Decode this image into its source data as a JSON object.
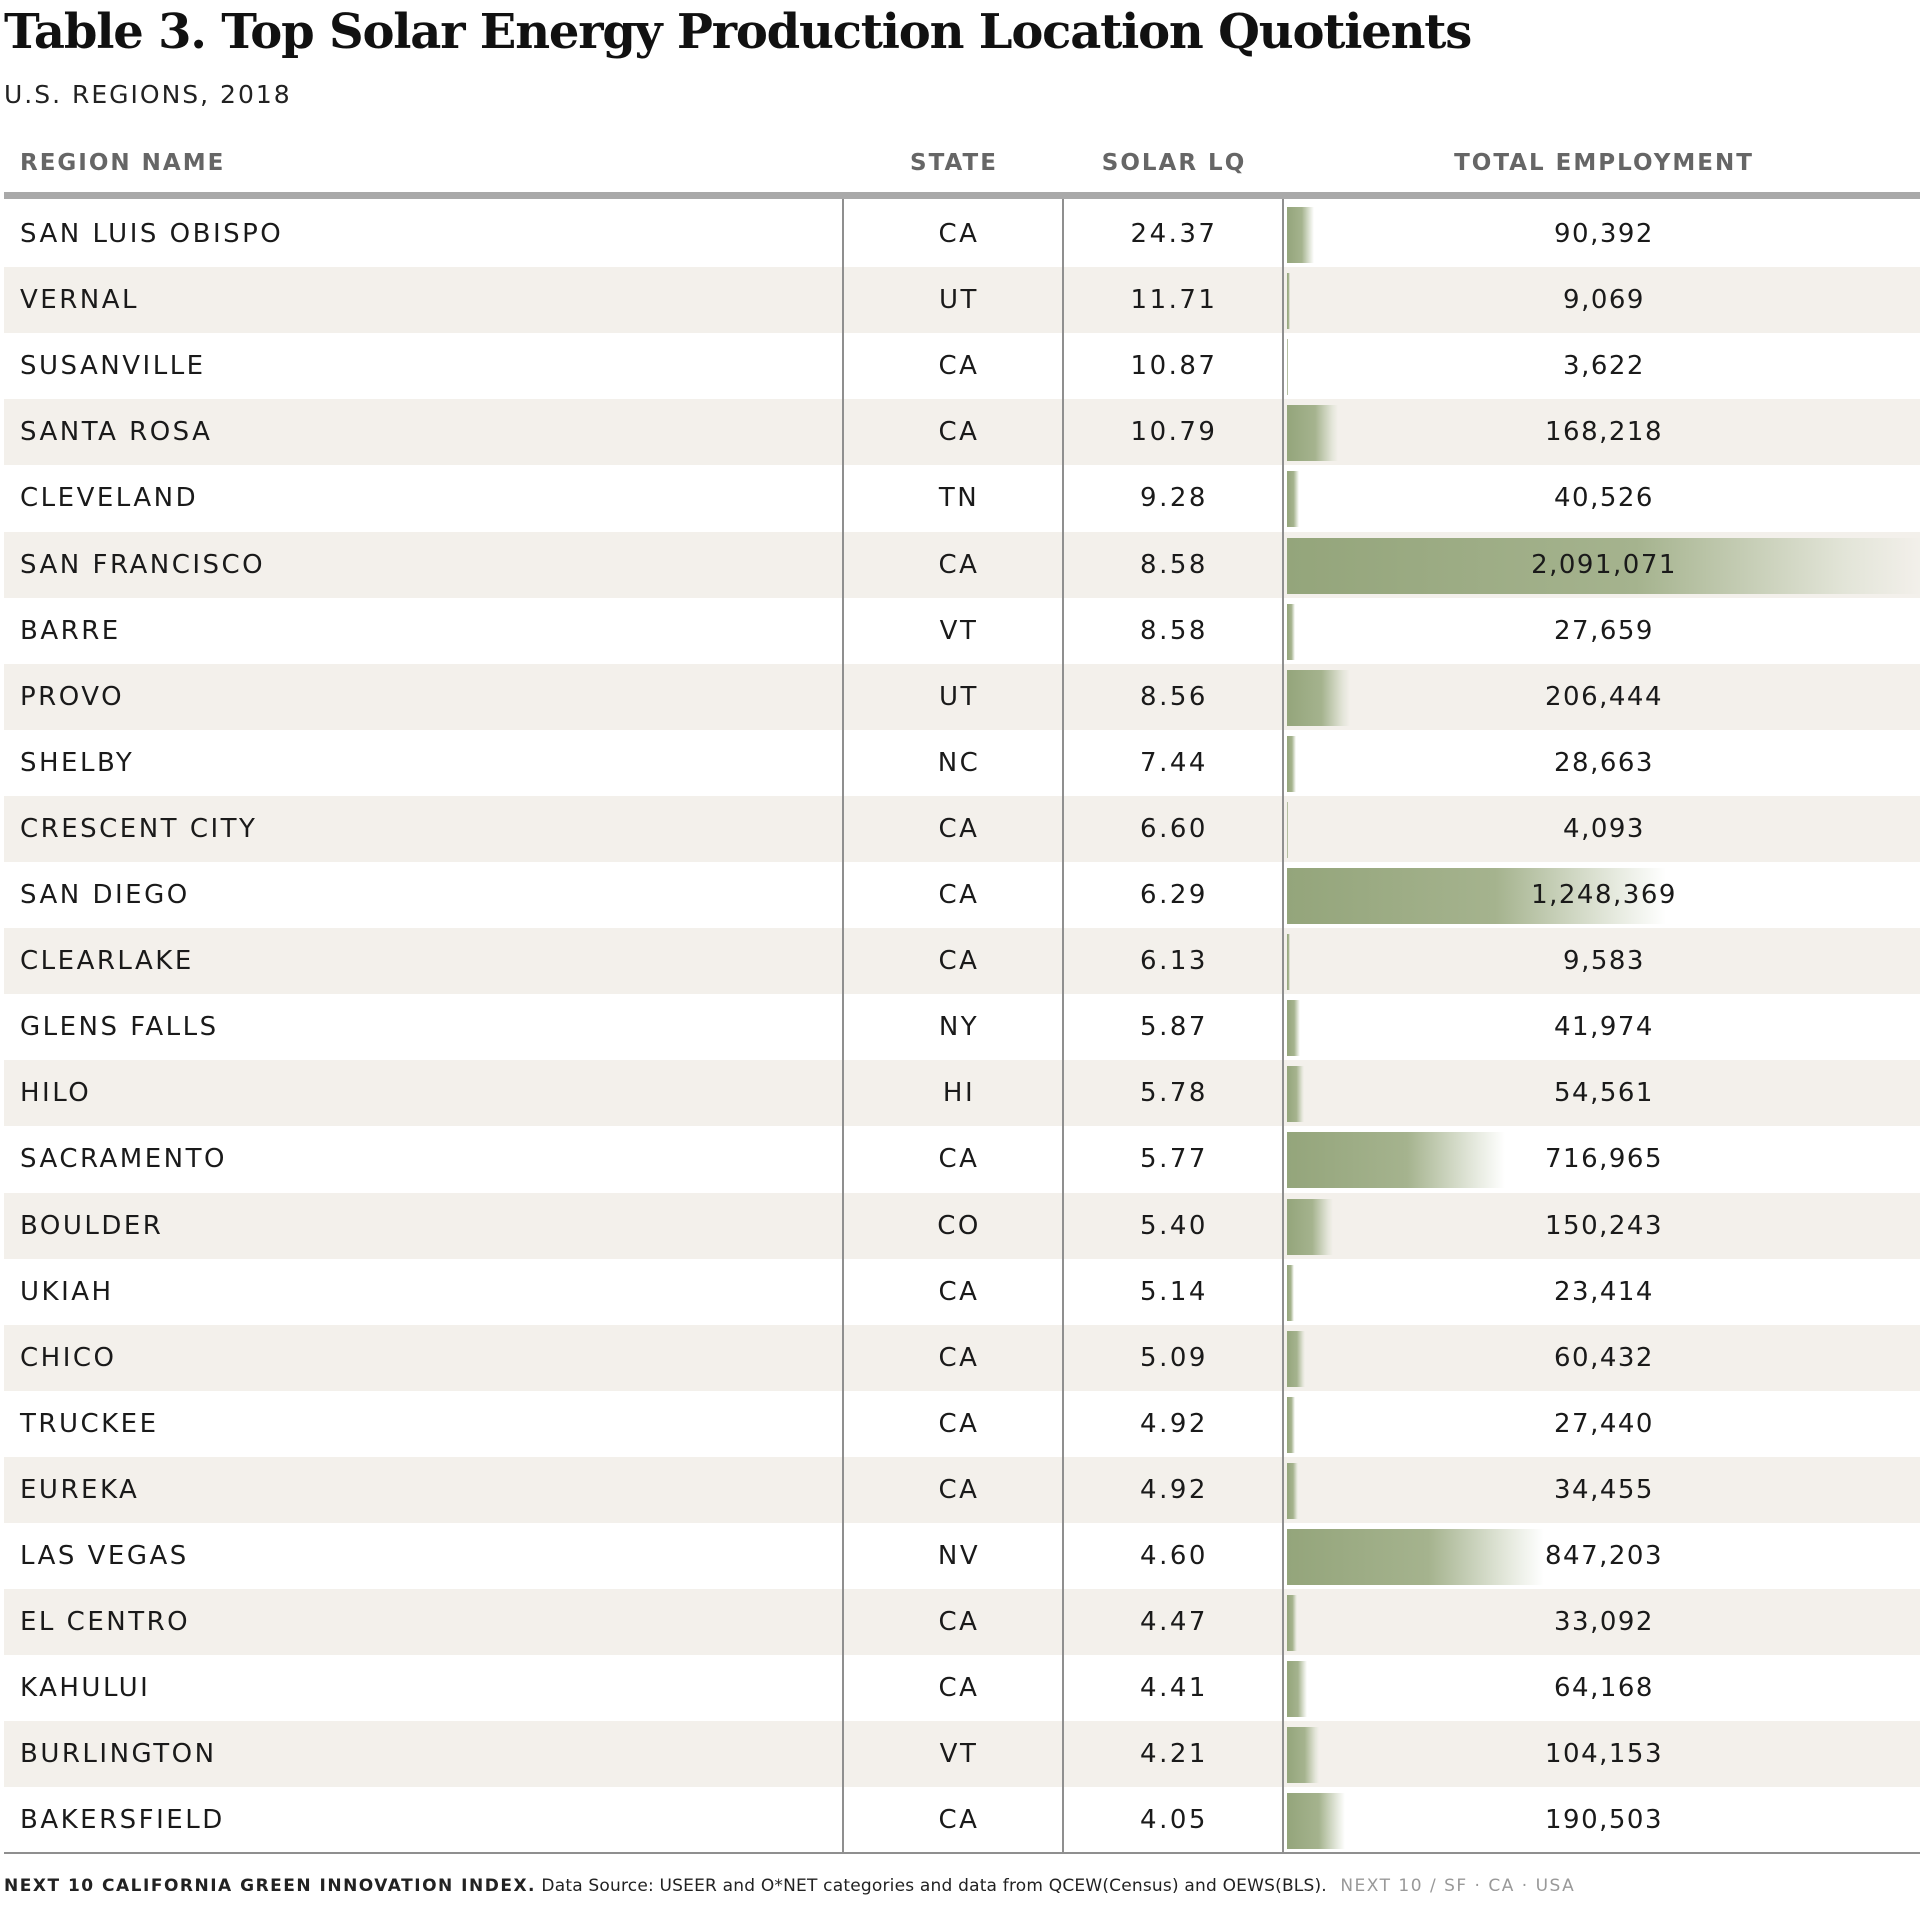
{
  "title": "Table 3. Top Solar Energy Production Location Quotients",
  "subtitle": "U.S. REGIONS, 2018",
  "columns": {
    "region": "REGION NAME",
    "state": "STATE",
    "lq": "SOLAR LQ",
    "employment": "TOTAL EMPLOYMENT"
  },
  "chart_data": {
    "type": "table",
    "title": "Table 3. Top Solar Energy Production Location Quotients",
    "subtitle": "U.S. REGIONS, 2018",
    "columns": [
      "REGION NAME",
      "STATE",
      "SOLAR LQ",
      "TOTAL EMPLOYMENT"
    ],
    "bar_column": "TOTAL EMPLOYMENT",
    "bar_color": "#94a57b",
    "rows": [
      {
        "region": "SAN LUIS OBISPO",
        "state": "CA",
        "lq": "24.37",
        "employment": "90,392",
        "employment_value": 90392
      },
      {
        "region": "VERNAL",
        "state": "UT",
        "lq": "11.71",
        "employment": "9,069",
        "employment_value": 9069
      },
      {
        "region": "SUSANVILLE",
        "state": "CA",
        "lq": "10.87",
        "employment": "3,622",
        "employment_value": 3622
      },
      {
        "region": "SANTA ROSA",
        "state": "CA",
        "lq": "10.79",
        "employment": "168,218",
        "employment_value": 168218
      },
      {
        "region": "CLEVELAND",
        "state": "TN",
        "lq": "9.28",
        "employment": "40,526",
        "employment_value": 40526
      },
      {
        "region": "SAN FRANCISCO",
        "state": "CA",
        "lq": "8.58",
        "employment": "2,091,071",
        "employment_value": 2091071
      },
      {
        "region": "BARRE",
        "state": "VT",
        "lq": "8.58",
        "employment": "27,659",
        "employment_value": 27659
      },
      {
        "region": "PROVO",
        "state": "UT",
        "lq": "8.56",
        "employment": "206,444",
        "employment_value": 206444
      },
      {
        "region": "SHELBY",
        "state": "NC",
        "lq": "7.44",
        "employment": "28,663",
        "employment_value": 28663
      },
      {
        "region": "CRESCENT CITY",
        "state": "CA",
        "lq": "6.60",
        "employment": "4,093",
        "employment_value": 4093
      },
      {
        "region": "SAN DIEGO",
        "state": "CA",
        "lq": "6.29",
        "employment": "1,248,369",
        "employment_value": 1248369
      },
      {
        "region": "CLEARLAKE",
        "state": "CA",
        "lq": "6.13",
        "employment": "9,583",
        "employment_value": 9583
      },
      {
        "region": "GLENS FALLS",
        "state": "NY",
        "lq": "5.87",
        "employment": "41,974",
        "employment_value": 41974
      },
      {
        "region": "HILO",
        "state": "HI",
        "lq": "5.78",
        "employment": "54,561",
        "employment_value": 54561
      },
      {
        "region": "SACRAMENTO",
        "state": "CA",
        "lq": "5.77",
        "employment": "716,965",
        "employment_value": 716965
      },
      {
        "region": "BOULDER",
        "state": "CO",
        "lq": "5.40",
        "employment": "150,243",
        "employment_value": 150243
      },
      {
        "region": "UKIAH",
        "state": "CA",
        "lq": "5.14",
        "employment": "23,414",
        "employment_value": 23414
      },
      {
        "region": "CHICO",
        "state": "CA",
        "lq": "5.09",
        "employment": "60,432",
        "employment_value": 60432
      },
      {
        "region": "TRUCKEE",
        "state": "CA",
        "lq": "4.92",
        "employment": "27,440",
        "employment_value": 27440
      },
      {
        "region": "EUREKA",
        "state": "CA",
        "lq": "4.92",
        "employment": "34,455",
        "employment_value": 34455
      },
      {
        "region": "LAS VEGAS",
        "state": "NV",
        "lq": "4.60",
        "employment": "847,203",
        "employment_value": 847203
      },
      {
        "region": "EL CENTRO",
        "state": "CA",
        "lq": "4.47",
        "employment": "33,092",
        "employment_value": 33092
      },
      {
        "region": "KAHULUI",
        "state": "CA",
        "lq": "4.41",
        "employment": "64,168",
        "employment_value": 64168
      },
      {
        "region": "BURLINGTON",
        "state": "VT",
        "lq": "4.21",
        "employment": "104,153",
        "employment_value": 104153
      },
      {
        "region": "BAKERSFIELD",
        "state": "CA",
        "lq": "4.05",
        "employment": "190,503",
        "employment_value": 190503
      }
    ]
  },
  "footer": {
    "index": "NEXT 10 CALIFORNIA GREEN INNOVATION INDEX.",
    "source": "Data Source: USEER and O*NET categories and data from QCEW(Census) and OEWS(BLS).",
    "brand": "NEXT 10  /  SF · CA · USA"
  }
}
